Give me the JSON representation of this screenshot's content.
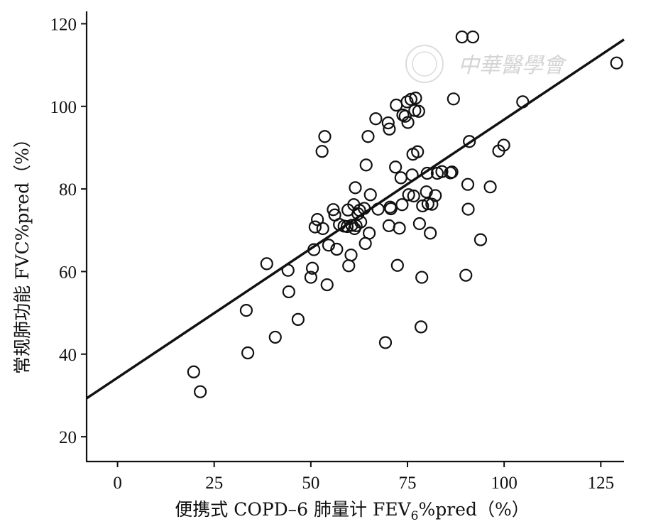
{
  "chart_data": {
    "type": "scatter",
    "xlabel": "便携式 COPD–6 肺量计 FEV",
    "xlabel_sub": "6",
    "xlabel_suffix": "%pred（%）",
    "ylabel": "常规肺功能 FVC%pred（%）",
    "xlim": [
      -8,
      131
    ],
    "ylim": [
      14,
      123
    ],
    "xticks": [
      0,
      25,
      50,
      75,
      100,
      125
    ],
    "yticks": [
      20,
      40,
      60,
      80,
      100,
      120
    ],
    "grid": false,
    "legend": "none",
    "regression_line": {
      "intercept": 34.3,
      "slope": 0.625,
      "color": "#111111"
    },
    "watermark": "中華醫學會",
    "points": [
      {
        "x": 19.7,
        "y": 35.7
      },
      {
        "x": 21.4,
        "y": 30.9
      },
      {
        "x": 33.3,
        "y": 50.6
      },
      {
        "x": 33.7,
        "y": 40.3
      },
      {
        "x": 38.6,
        "y": 61.9
      },
      {
        "x": 40.8,
        "y": 44.1
      },
      {
        "x": 44.1,
        "y": 60.3
      },
      {
        "x": 44.3,
        "y": 55.1
      },
      {
        "x": 46.7,
        "y": 48.4
      },
      {
        "x": 50.0,
        "y": 58.6
      },
      {
        "x": 50.4,
        "y": 60.8
      },
      {
        "x": 50.8,
        "y": 65.3
      },
      {
        "x": 51.1,
        "y": 70.8
      },
      {
        "x": 51.7,
        "y": 72.6
      },
      {
        "x": 52.9,
        "y": 89.1
      },
      {
        "x": 53.1,
        "y": 70.4
      },
      {
        "x": 53.6,
        "y": 92.7
      },
      {
        "x": 54.2,
        "y": 56.8
      },
      {
        "x": 54.6,
        "y": 66.4
      },
      {
        "x": 55.8,
        "y": 75.0
      },
      {
        "x": 56.2,
        "y": 73.7
      },
      {
        "x": 56.7,
        "y": 65.4
      },
      {
        "x": 57.4,
        "y": 71.4
      },
      {
        "x": 58.6,
        "y": 71.0
      },
      {
        "x": 59.4,
        "y": 70.9
      },
      {
        "x": 59.6,
        "y": 74.9
      },
      {
        "x": 59.8,
        "y": 61.4
      },
      {
        "x": 60.4,
        "y": 64.0
      },
      {
        "x": 60.6,
        "y": 71.2
      },
      {
        "x": 61.1,
        "y": 76.2
      },
      {
        "x": 61.3,
        "y": 70.4
      },
      {
        "x": 61.5,
        "y": 80.3
      },
      {
        "x": 61.7,
        "y": 71.1
      },
      {
        "x": 62.2,
        "y": 74.0
      },
      {
        "x": 62.6,
        "y": 74.8
      },
      {
        "x": 62.9,
        "y": 72.0
      },
      {
        "x": 63.8,
        "y": 75.3
      },
      {
        "x": 64.1,
        "y": 66.8
      },
      {
        "x": 64.3,
        "y": 85.8
      },
      {
        "x": 64.8,
        "y": 92.7
      },
      {
        "x": 65.1,
        "y": 69.3
      },
      {
        "x": 65.4,
        "y": 78.6
      },
      {
        "x": 66.8,
        "y": 97.0
      },
      {
        "x": 67.4,
        "y": 75.1
      },
      {
        "x": 69.3,
        "y": 42.8
      },
      {
        "x": 70.0,
        "y": 96.0
      },
      {
        "x": 70.2,
        "y": 71.1
      },
      {
        "x": 70.3,
        "y": 94.5
      },
      {
        "x": 70.5,
        "y": 75.6
      },
      {
        "x": 70.7,
        "y": 75.2
      },
      {
        "x": 71.9,
        "y": 85.3
      },
      {
        "x": 72.1,
        "y": 100.3
      },
      {
        "x": 72.4,
        "y": 61.5
      },
      {
        "x": 72.9,
        "y": 70.5
      },
      {
        "x": 73.3,
        "y": 82.7
      },
      {
        "x": 73.6,
        "y": 76.2
      },
      {
        "x": 73.8,
        "y": 97.9
      },
      {
        "x": 74.4,
        "y": 97.6
      },
      {
        "x": 74.9,
        "y": 101.1
      },
      {
        "x": 75.1,
        "y": 96.1
      },
      {
        "x": 75.3,
        "y": 78.6
      },
      {
        "x": 75.9,
        "y": 101.7
      },
      {
        "x": 76.2,
        "y": 83.4
      },
      {
        "x": 76.4,
        "y": 88.4
      },
      {
        "x": 76.6,
        "y": 78.3
      },
      {
        "x": 76.9,
        "y": 99.0
      },
      {
        "x": 77.1,
        "y": 102.0
      },
      {
        "x": 77.6,
        "y": 89.0
      },
      {
        "x": 77.9,
        "y": 98.8
      },
      {
        "x": 78.1,
        "y": 71.6
      },
      {
        "x": 78.5,
        "y": 46.6
      },
      {
        "x": 78.7,
        "y": 58.6
      },
      {
        "x": 78.9,
        "y": 75.9
      },
      {
        "x": 79.9,
        "y": 79.3
      },
      {
        "x": 80.1,
        "y": 83.8
      },
      {
        "x": 80.3,
        "y": 76.4
      },
      {
        "x": 80.9,
        "y": 69.3
      },
      {
        "x": 81.3,
        "y": 76.3
      },
      {
        "x": 82.2,
        "y": 78.4
      },
      {
        "x": 82.7,
        "y": 83.8
      },
      {
        "x": 83.9,
        "y": 84.2
      },
      {
        "x": 86.1,
        "y": 83.9
      },
      {
        "x": 86.5,
        "y": 84.1
      },
      {
        "x": 86.9,
        "y": 101.8
      },
      {
        "x": 89.1,
        "y": 116.8
      },
      {
        "x": 90.1,
        "y": 59.1
      },
      {
        "x": 90.6,
        "y": 81.1
      },
      {
        "x": 90.7,
        "y": 75.1
      },
      {
        "x": 91.0,
        "y": 91.5
      },
      {
        "x": 91.9,
        "y": 116.8
      },
      {
        "x": 93.9,
        "y": 67.7
      },
      {
        "x": 96.4,
        "y": 80.5
      },
      {
        "x": 98.6,
        "y": 89.2
      },
      {
        "x": 99.9,
        "y": 90.6
      },
      {
        "x": 104.8,
        "y": 101.1
      },
      {
        "x": 129.1,
        "y": 110.5
      }
    ]
  }
}
